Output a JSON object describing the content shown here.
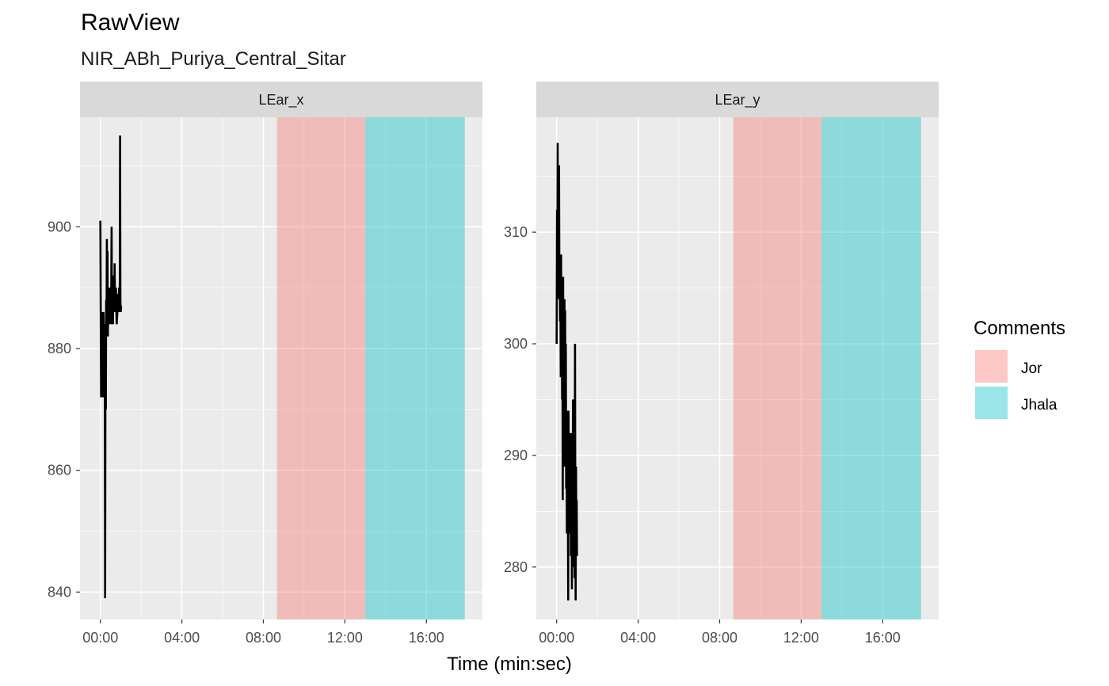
{
  "title": "RawView",
  "subtitle": "NIR_ABh_Puriya_Central_Sitar",
  "chart_data": [
    {
      "type": "line",
      "panel": "LEar_x",
      "xlabel": "Time (min:sec)",
      "x_tick_labels": [
        "00:00",
        "04:00",
        "08:00",
        "12:00",
        "16:00"
      ],
      "x_ticks_sec": [
        0,
        240,
        480,
        720,
        960
      ],
      "xlim_sec": [
        -60,
        1125
      ],
      "y_ticks": [
        840,
        860,
        880,
        900
      ],
      "ylim": [
        835.5,
        918
      ],
      "grid": true,
      "bands": [
        {
          "label": "Jor",
          "start_sec": 520,
          "end_sec": 780
        },
        {
          "label": "Jhala",
          "start_sec": 780,
          "end_sec": 1073
        }
      ],
      "series": [
        {
          "color": "#000000",
          "x": [
            0,
            2,
            3,
            5,
            6,
            8,
            9,
            11,
            13,
            14,
            15,
            16,
            17,
            18,
            19,
            20,
            21,
            22,
            23,
            24,
            25,
            26,
            27,
            28,
            29,
            30,
            31,
            32,
            33,
            34,
            35,
            36,
            37,
            38,
            39,
            40,
            41,
            42,
            43,
            44,
            45,
            46,
            47,
            48,
            50,
            51,
            52,
            53,
            54,
            55,
            56,
            57,
            58,
            59,
            60,
            61
          ],
          "y": [
            901,
            872,
            886,
            874,
            884,
            872,
            886,
            880,
            883,
            839,
            884,
            870,
            888,
            882,
            898,
            884,
            896,
            882,
            888,
            886,
            890,
            884,
            886,
            888,
            886,
            890,
            884,
            888,
            900,
            884,
            890,
            886,
            884,
            892,
            886,
            888,
            886,
            894,
            886,
            889,
            887,
            890,
            886,
            884,
            886,
            889,
            886,
            888,
            886,
            890,
            888,
            887,
            915,
            888,
            886,
            887
          ]
        }
      ]
    },
    {
      "type": "line",
      "panel": "LEar_y",
      "xlabel": "Time (min:sec)",
      "x_tick_labels": [
        "00:00",
        "04:00",
        "08:00",
        "12:00",
        "16:00"
      ],
      "x_ticks_sec": [
        0,
        240,
        480,
        720,
        960
      ],
      "xlim_sec": [
        -60,
        1125
      ],
      "y_ticks": [
        280,
        290,
        300,
        310
      ],
      "ylim": [
        275.3,
        320.3
      ],
      "grid": true,
      "bands": [
        {
          "label": "Jor",
          "start_sec": 520,
          "end_sec": 780
        },
        {
          "label": "Jhala",
          "start_sec": 780,
          "end_sec": 1073
        }
      ],
      "series": [
        {
          "color": "#000000",
          "x": [
            0,
            1,
            2,
            3,
            4,
            5,
            6,
            7,
            8,
            9,
            10,
            11,
            12,
            13,
            14,
            15,
            16,
            17,
            18,
            19,
            20,
            21,
            22,
            23,
            24,
            25,
            26,
            27,
            28,
            29,
            30,
            31,
            32,
            33,
            34,
            35,
            36,
            37,
            38,
            39,
            40,
            41,
            42,
            43,
            44,
            45,
            46,
            47,
            48,
            49,
            50,
            51,
            52,
            53,
            54,
            55,
            56,
            57,
            58,
            59,
            60
          ],
          "y": [
            300,
            312,
            306,
            318,
            304,
            311,
            306,
            316,
            304,
            308,
            302,
            306,
            297,
            308,
            301,
            304,
            295,
            301,
            286,
            306,
            291,
            302,
            296,
            304,
            289,
            303,
            293,
            300,
            287,
            294,
            283,
            292,
            289,
            286,
            277,
            294,
            284,
            290,
            288,
            283,
            286,
            292,
            281,
            290,
            287,
            278,
            292,
            282,
            295,
            284,
            290,
            280,
            287,
            279,
            300,
            283,
            277,
            289,
            282,
            286,
            281
          ]
        }
      ]
    }
  ],
  "legend": {
    "title": "Comments",
    "placement": "right",
    "items": [
      {
        "label": "Jor",
        "color": "#F8766D"
      },
      {
        "label": "Jhala",
        "color": "#00BFC4"
      }
    ]
  },
  "colors": {
    "panel_background": "#EBEBEB",
    "strip_background": "#D9D9D9",
    "grid": "#FFFFFF",
    "jor": "#F8766D",
    "jhala": "#00BFC4"
  }
}
